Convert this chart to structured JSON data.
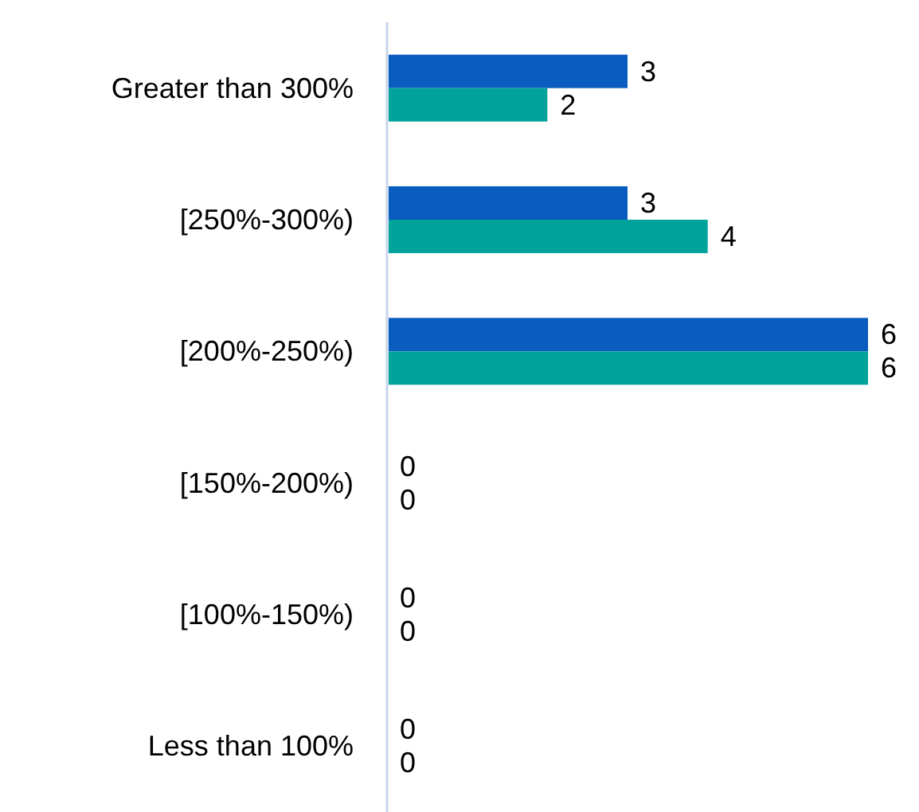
{
  "chart_data": {
    "type": "bar",
    "orientation": "horizontal",
    "categories": [
      "Greater than 300%",
      "[250%-300%)",
      "[200%-250%)",
      "[150%-200%)",
      "[100%-150%)",
      "Less than 100%"
    ],
    "series": [
      {
        "color": "#0a5cbe",
        "values": [
          3,
          3,
          6,
          0,
          0,
          0
        ]
      },
      {
        "color": "#00a39c",
        "values": [
          2,
          4,
          6,
          0,
          0,
          0
        ]
      }
    ],
    "data_labels": true
  }
}
